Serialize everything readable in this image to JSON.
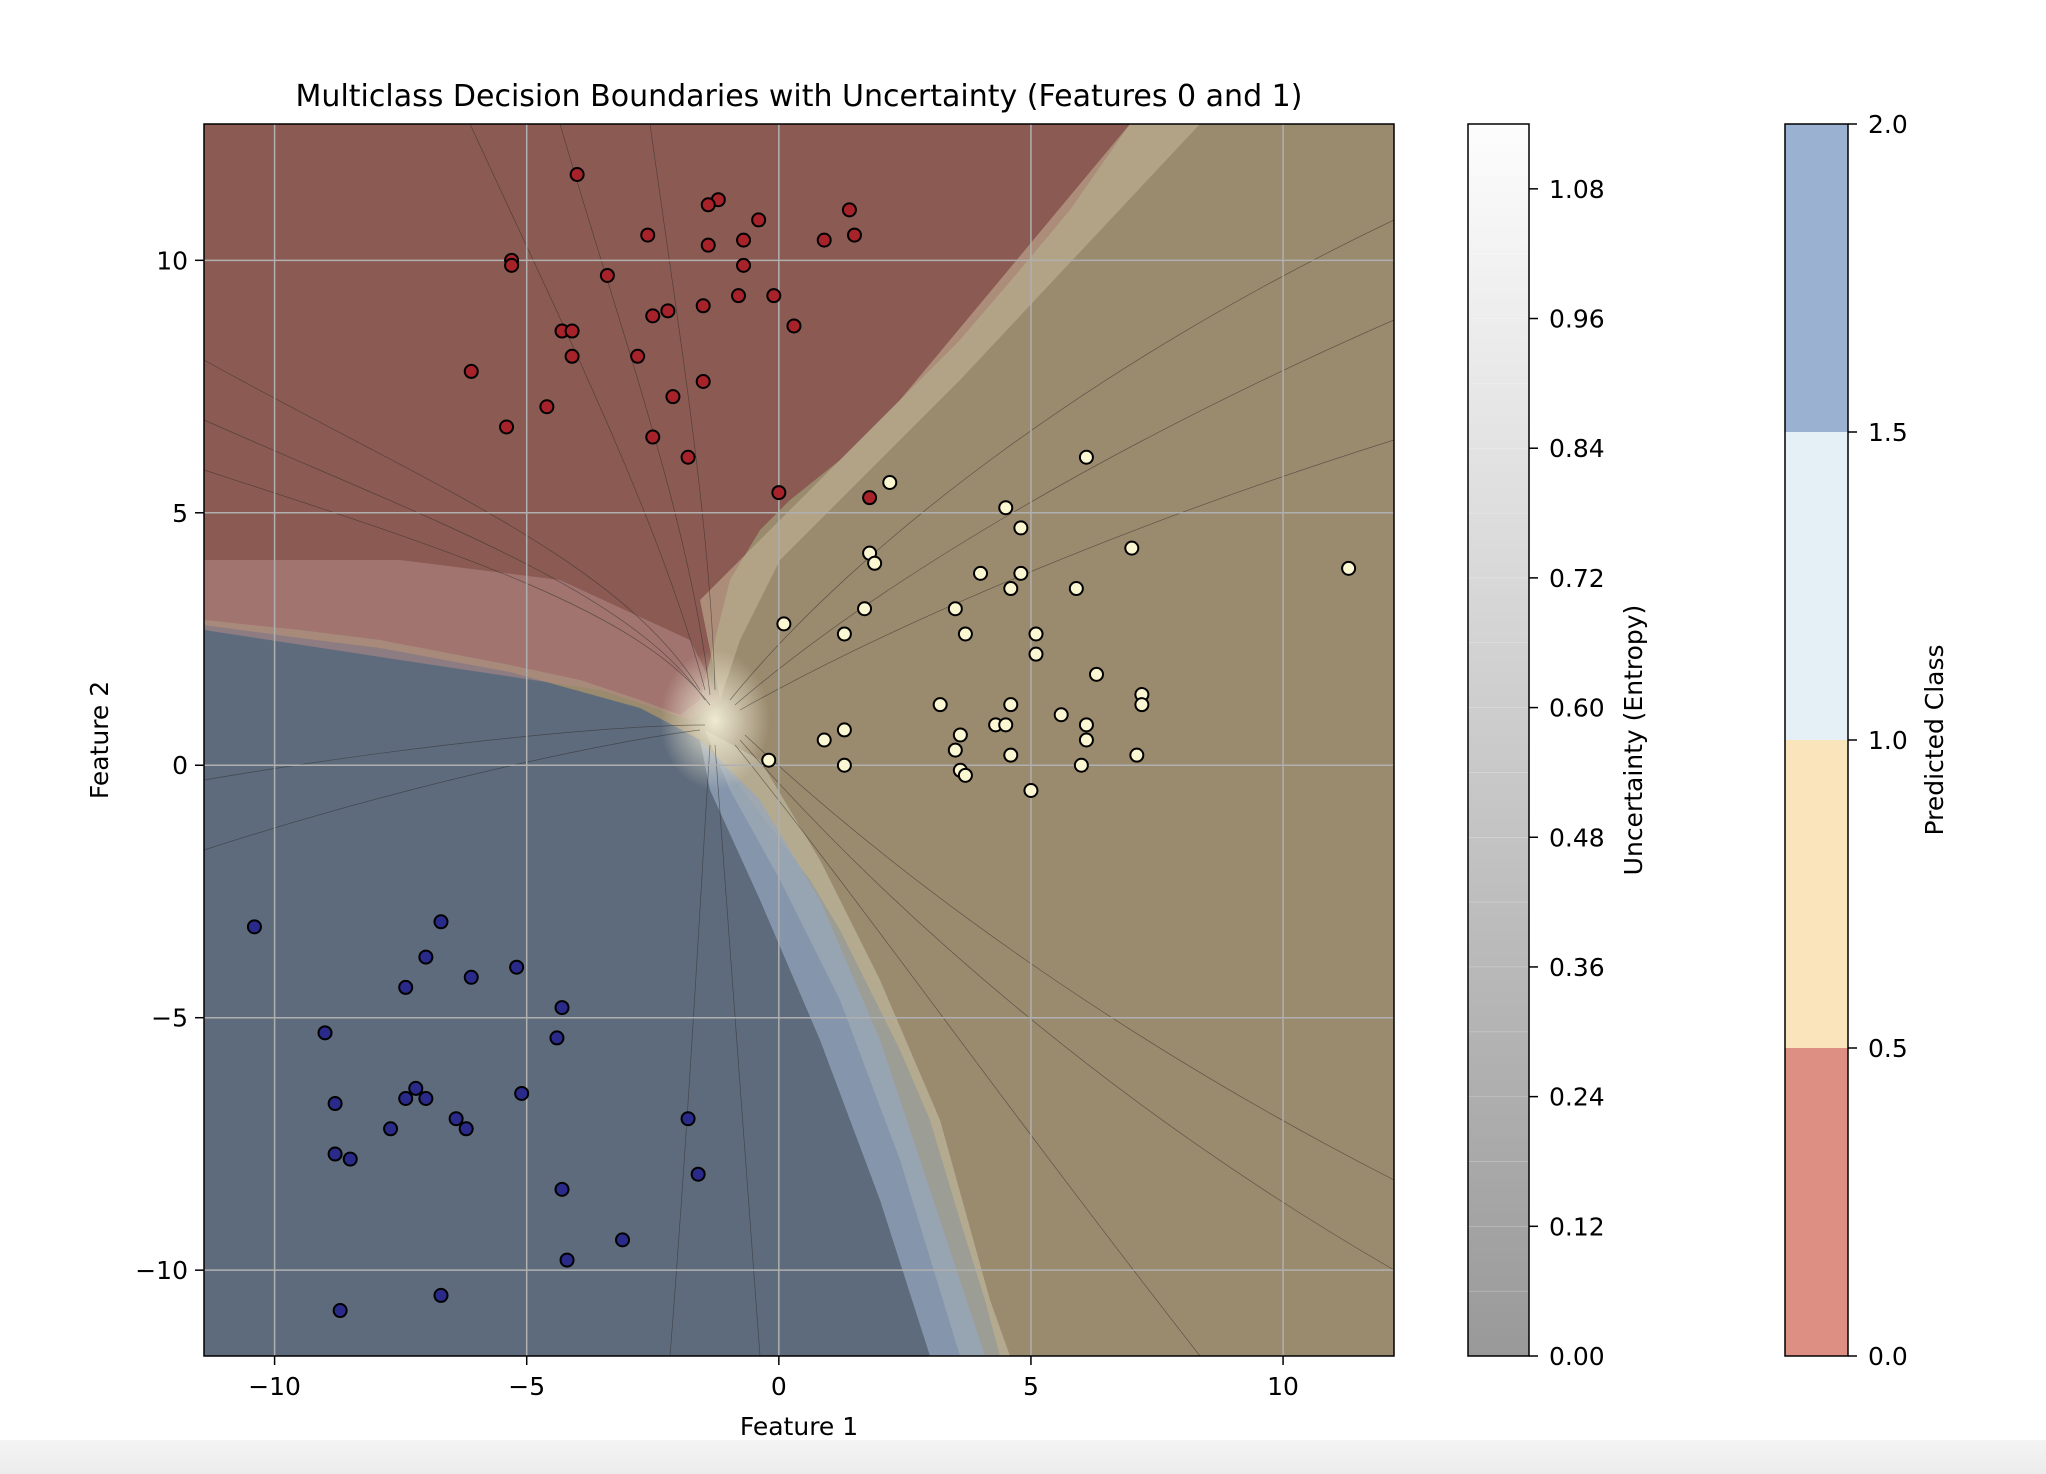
{
  "chart_data": {
    "type": "scatter",
    "title": "Multiclass Decision Boundaries with Uncertainty (Features 0 and 1)",
    "xlabel": "Feature 1",
    "ylabel": "Feature 2",
    "xlim": [
      -11.4,
      12.2
    ],
    "ylim": [
      -11.7,
      12.7
    ],
    "xticks": [
      -10,
      -5,
      0,
      5,
      10
    ],
    "yticks": [
      -10,
      -5,
      0,
      5,
      10
    ],
    "xtick_labels": [
      "−10",
      "−5",
      "0",
      "5",
      "10"
    ],
    "ytick_labels": [
      "−10",
      "−5",
      "0",
      "5",
      "10"
    ],
    "grid": true,
    "regions": [
      {
        "class": 0,
        "color": "#8b5a52"
      },
      {
        "class": 1,
        "color": "#9a8a6e"
      },
      {
        "class": 2,
        "color": "#5e6b7c"
      }
    ],
    "series": [
      {
        "class": 0,
        "color": "#a8222a",
        "points": [
          [
            -4,
            11.7
          ],
          [
            -1.2,
            11.2
          ],
          [
            -1.4,
            11.1
          ],
          [
            1.4,
            11
          ],
          [
            -0.4,
            10.8
          ],
          [
            1.5,
            10.5
          ],
          [
            -2.6,
            10.5
          ],
          [
            -0.7,
            10.4
          ],
          [
            -1.4,
            10.3
          ],
          [
            0.9,
            10.4
          ],
          [
            -5.3,
            10
          ],
          [
            -5.3,
            9.9
          ],
          [
            -0.7,
            9.9
          ],
          [
            -3.4,
            9.7
          ],
          [
            -0.8,
            9.3
          ],
          [
            -0.1,
            9.3
          ],
          [
            -1.5,
            9.1
          ],
          [
            -2.5,
            8.9
          ],
          [
            -2.2,
            9
          ],
          [
            0.3,
            8.7
          ],
          [
            -4.3,
            8.6
          ],
          [
            -4.1,
            8.6
          ],
          [
            -4.1,
            8.1
          ],
          [
            -2.8,
            8.1
          ],
          [
            -6.1,
            7.8
          ],
          [
            -1.5,
            7.6
          ],
          [
            -2.1,
            7.3
          ],
          [
            -4.6,
            7.1
          ],
          [
            -5.4,
            6.7
          ],
          [
            -2.5,
            6.5
          ],
          [
            -1.8,
            6.1
          ],
          [
            0,
            5.4
          ],
          [
            1.8,
            5.3
          ]
        ]
      },
      {
        "class": 1,
        "color": "#fbf7d2",
        "points": [
          [
            2.2,
            5.6
          ],
          [
            6.1,
            6.1
          ],
          [
            4.5,
            5.1
          ],
          [
            4.8,
            4.7
          ],
          [
            7,
            4.3
          ],
          [
            11.3,
            3.9
          ],
          [
            1.8,
            4.2
          ],
          [
            1.9,
            4
          ],
          [
            4,
            3.8
          ],
          [
            4.8,
            3.8
          ],
          [
            4.6,
            3.5
          ],
          [
            5.9,
            3.5
          ],
          [
            3.5,
            3.1
          ],
          [
            1.7,
            3.1
          ],
          [
            0.1,
            2.8
          ],
          [
            3.7,
            2.6
          ],
          [
            1.3,
            2.6
          ],
          [
            5.1,
            2.6
          ],
          [
            5.1,
            2.2
          ],
          [
            6.3,
            1.8
          ],
          [
            7.2,
            1.4
          ],
          [
            7.2,
            1.2
          ],
          [
            3.2,
            1.2
          ],
          [
            4.6,
            1.2
          ],
          [
            5.6,
            1
          ],
          [
            4.3,
            0.8
          ],
          [
            4.5,
            0.8
          ],
          [
            6.1,
            0.8
          ],
          [
            1.3,
            0.7
          ],
          [
            3.6,
            0.6
          ],
          [
            0.9,
            0.5
          ],
          [
            6.1,
            0.5
          ],
          [
            3.5,
            0.3
          ],
          [
            4.6,
            0.2
          ],
          [
            7.1,
            0.2
          ],
          [
            -0.2,
            0.1
          ],
          [
            1.3,
            0
          ],
          [
            6,
            0
          ],
          [
            3.6,
            -0.1
          ],
          [
            3.7,
            -0.2
          ],
          [
            5,
            -0.5
          ]
        ]
      },
      {
        "class": 2,
        "color": "#2a2a8a",
        "points": [
          [
            -10.4,
            -3.2
          ],
          [
            -6.7,
            -3.1
          ],
          [
            -7,
            -3.8
          ],
          [
            -5.2,
            -4
          ],
          [
            -6.1,
            -4.2
          ],
          [
            -7.4,
            -4.4
          ],
          [
            -4.3,
            -4.8
          ],
          [
            -9,
            -5.3
          ],
          [
            -4.4,
            -5.4
          ],
          [
            -5.1,
            -6.5
          ],
          [
            -7.2,
            -6.4
          ],
          [
            -7.4,
            -6.6
          ],
          [
            -7,
            -6.6
          ],
          [
            -8.8,
            -6.7
          ],
          [
            -6.4,
            -7
          ],
          [
            -1.8,
            -7
          ],
          [
            -6.2,
            -7.2
          ],
          [
            -7.7,
            -7.2
          ],
          [
            -8.8,
            -7.7
          ],
          [
            -8.5,
            -7.8
          ],
          [
            -1.6,
            -8.1
          ],
          [
            -4.3,
            -8.4
          ],
          [
            -3.1,
            -9.4
          ],
          [
            -4.2,
            -9.8
          ],
          [
            -6.7,
            -10.5
          ],
          [
            -8.7,
            -10.8
          ]
        ]
      }
    ]
  },
  "colorbars": [
    {
      "label": "Uncertainty (Entropy)",
      "tick_labels": [
        "0.00",
        "0.12",
        "0.24",
        "0.36",
        "0.48",
        "0.60",
        "0.72",
        "0.84",
        "0.96",
        "1.08"
      ],
      "range": [
        0,
        1.14
      ],
      "color_low": "#999999",
      "color_high": "#fdfdfd"
    },
    {
      "label": "Predicted Class",
      "tick_labels": [
        "0.0",
        "0.5",
        "1.0",
        "1.5",
        "2.0"
      ],
      "bands": [
        "#dd8f84",
        "#f9e4bc",
        "#e4f0f6",
        "#9ab1d2"
      ]
    }
  ]
}
